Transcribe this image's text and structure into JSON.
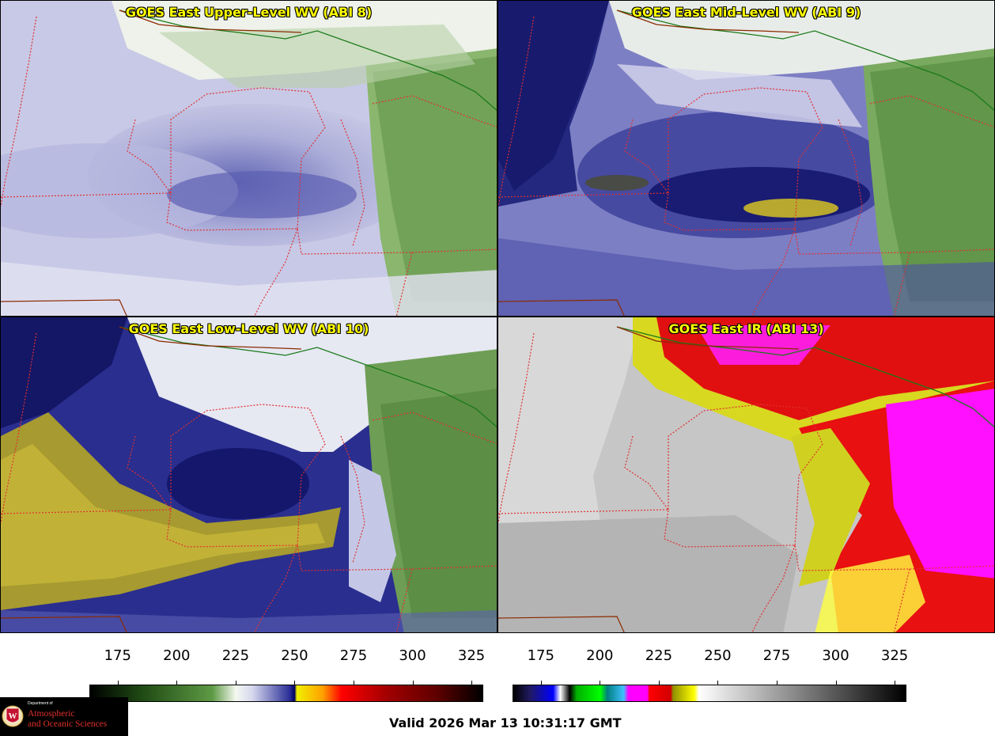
{
  "panels": [
    {
      "title": "GOES East Upper-Level WV (ABI 8)"
    },
    {
      "title": "GOES East Mid-Level WV (ABI 9)"
    },
    {
      "title": "GOES East Low-Level WV (ABI 10)"
    },
    {
      "title": "GOES East IR (ABI 13)"
    }
  ],
  "colorbars": [
    {
      "name": "water-vapor",
      "ticks": [
        "175",
        "200",
        "225",
        "250",
        "275",
        "300",
        "325"
      ],
      "tick_values": [
        175,
        200,
        225,
        250,
        275,
        300,
        325
      ],
      "range": [
        163,
        330
      ],
      "stops": [
        [
          163,
          "#000000"
        ],
        [
          185,
          "#1f4a14"
        ],
        [
          215,
          "#5e9a45"
        ],
        [
          225,
          "#f4f8f0"
        ],
        [
          232,
          "#d6d8ee"
        ],
        [
          248,
          "#2a2e96"
        ],
        [
          250,
          "#000060"
        ],
        [
          251,
          "#f0f000"
        ],
        [
          262,
          "#ffa000"
        ],
        [
          270,
          "#ff0000"
        ],
        [
          290,
          "#a00000"
        ],
        [
          310,
          "#600000"
        ],
        [
          330,
          "#000000"
        ]
      ]
    },
    {
      "name": "infrared",
      "ticks": [
        "175",
        "200",
        "225",
        "250",
        "275",
        "300",
        "325"
      ],
      "tick_values": [
        175,
        200,
        225,
        250,
        275,
        300,
        325
      ],
      "range": [
        163,
        330
      ],
      "stops": [
        [
          163,
          "#000000"
        ],
        [
          170,
          "#201a60"
        ],
        [
          180,
          "#0000ff"
        ],
        [
          183,
          "#ffffff"
        ],
        [
          187,
          "#000000"
        ],
        [
          190,
          "#00b000"
        ],
        [
          200,
          "#00ff00"
        ],
        [
          203,
          "#008080"
        ],
        [
          210,
          "#40c0ff"
        ],
        [
          212,
          "#ff00ff"
        ],
        [
          220,
          "#ff00ff"
        ],
        [
          221,
          "#ff0000"
        ],
        [
          230,
          "#d00000"
        ],
        [
          231,
          "#909000"
        ],
        [
          240,
          "#ffff00"
        ],
        [
          242,
          "#ffffff"
        ],
        [
          330,
          "#000000"
        ]
      ]
    }
  ],
  "logo": {
    "dept": "Department of",
    "line1": "Atmospheric",
    "line2": "and Oceanic Sciences"
  },
  "valid_text": "Valid 2026 Mar 13 10:31:17 GMT"
}
